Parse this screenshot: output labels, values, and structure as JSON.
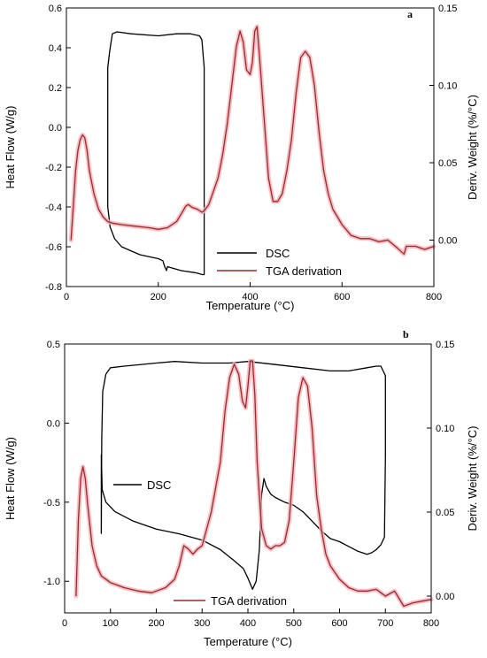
{
  "chart_data": [
    {
      "type": "line",
      "panel_label": "a",
      "xlabel": "Temperature (°C)",
      "ylabel": "Heat Flow (W/g)",
      "y2label": "Deriv. Weight (%/°C)",
      "xlim": [
        0,
        800
      ],
      "ylim": [
        -0.8,
        0.6
      ],
      "y2lim": [
        -0.03,
        0.15
      ],
      "xticks": [
        "0",
        "200",
        "400",
        "600",
        "800"
      ],
      "yticks": [
        "-0.8",
        "-0.6",
        "-0.4",
        "-0.2",
        "0.0",
        "0.2",
        "0.4",
        "0.6"
      ],
      "y2ticks": [
        "0.00",
        "0.05",
        "0.10",
        "0.15"
      ],
      "legend_position": "bottom-center",
      "legend": [
        "DSC",
        "TGA derivation"
      ],
      "colors": {
        "DSC": "#000000",
        "TGA derivation": "#9b2a2a",
        "halo": "#f3b0b8"
      },
      "series": [
        {
          "name": "DSC",
          "axis": "left",
          "x": [
            90,
            90,
            94,
            100,
            110,
            140,
            200,
            240,
            270,
            290,
            295,
            300,
            300,
            300,
            296,
            280,
            250,
            220,
            218,
            214,
            210,
            200,
            180,
            160,
            140,
            120,
            105,
            95,
            90,
            90,
            90
          ],
          "y": [
            -0.02,
            0.3,
            0.38,
            0.47,
            0.48,
            0.47,
            0.46,
            0.47,
            0.47,
            0.46,
            0.44,
            0.3,
            -0.2,
            -0.74,
            -0.74,
            -0.73,
            -0.72,
            -0.7,
            -0.72,
            -0.7,
            -0.67,
            -0.66,
            -0.65,
            -0.64,
            -0.62,
            -0.6,
            -0.56,
            -0.5,
            -0.4,
            -0.2,
            -0.02
          ]
        },
        {
          "name": "TGA derivation",
          "axis": "right",
          "x": [
            10,
            15,
            20,
            25,
            30,
            35,
            40,
            45,
            50,
            60,
            70,
            80,
            90,
            100,
            120,
            150,
            180,
            200,
            220,
            240,
            250,
            260,
            265,
            275,
            285,
            295,
            300,
            310,
            330,
            340,
            350,
            360,
            370,
            378,
            385,
            392,
            400,
            405,
            410,
            415,
            420,
            430,
            440,
            450,
            460,
            470,
            480,
            490,
            500,
            510,
            520,
            530,
            540,
            550,
            560,
            570,
            580,
            600,
            620,
            640,
            660,
            680,
            700,
            720,
            735,
            740,
            760,
            780,
            800
          ],
          "y": [
            0.0,
            0.022,
            0.045,
            0.058,
            0.065,
            0.068,
            0.066,
            0.058,
            0.045,
            0.03,
            0.02,
            0.015,
            0.012,
            0.011,
            0.01,
            0.009,
            0.008,
            0.007,
            0.008,
            0.012,
            0.017,
            0.022,
            0.023,
            0.021,
            0.02,
            0.018,
            0.019,
            0.023,
            0.04,
            0.055,
            0.075,
            0.1,
            0.125,
            0.135,
            0.128,
            0.11,
            0.107,
            0.115,
            0.135,
            0.138,
            0.12,
            0.08,
            0.04,
            0.025,
            0.025,
            0.03,
            0.045,
            0.065,
            0.095,
            0.118,
            0.122,
            0.118,
            0.1,
            0.07,
            0.045,
            0.03,
            0.02,
            0.01,
            0.003,
            0.001,
            0.001,
            -0.001,
            0.0,
            -0.005,
            -0.009,
            -0.004,
            -0.004,
            -0.006,
            -0.004
          ]
        }
      ]
    },
    {
      "type": "line",
      "panel_label": "b",
      "xlabel": "Temperature (°C)",
      "ylabel": "Heat Flow (W/g)",
      "y2label": "Deriv. Weight (%/°C)",
      "xlim": [
        0,
        800
      ],
      "ylim": [
        -1.2,
        0.5
      ],
      "y2lim": [
        -0.01,
        0.15
      ],
      "xticks": [
        "0",
        "100",
        "200",
        "300",
        "400",
        "500",
        "600",
        "700",
        "800"
      ],
      "yticks": [
        "-1.0",
        "-0.5",
        "0.0",
        "0.5"
      ],
      "y2ticks": [
        "0.00",
        "0.05",
        "0.10",
        "0.15"
      ],
      "legend": [
        "DSC",
        "TGA derivation"
      ],
      "colors": {
        "DSC": "#000000",
        "TGA derivation": "#9b2a2a",
        "halo": "#f3b0b8"
      },
      "series": [
        {
          "name": "DSC",
          "axis": "left",
          "x": [
            80,
            81,
            83,
            90,
            100,
            130,
            200,
            240,
            300,
            360,
            400,
            460,
            520,
            580,
            620,
            660,
            680,
            690,
            695,
            700,
            700,
            698,
            690,
            680,
            670,
            660,
            640,
            620,
            600,
            580,
            560,
            540,
            520,
            500,
            480,
            460,
            450,
            440,
            435,
            430,
            425,
            418,
            410,
            400,
            390,
            370,
            340,
            300,
            250,
            200,
            150,
            110,
            90,
            82,
            80,
            80
          ],
          "y": [
            -0.7,
            -0.1,
            0.2,
            0.31,
            0.35,
            0.36,
            0.38,
            0.39,
            0.38,
            0.38,
            0.39,
            0.37,
            0.35,
            0.33,
            0.33,
            0.35,
            0.36,
            0.36,
            0.33,
            0.3,
            -0.2,
            -0.72,
            -0.77,
            -0.8,
            -0.82,
            -0.83,
            -0.81,
            -0.78,
            -0.75,
            -0.73,
            -0.68,
            -0.62,
            -0.56,
            -0.52,
            -0.5,
            -0.47,
            -0.45,
            -0.4,
            -0.35,
            -0.45,
            -0.8,
            -1.0,
            -1.05,
            -0.98,
            -0.92,
            -0.87,
            -0.8,
            -0.74,
            -0.7,
            -0.67,
            -0.62,
            -0.56,
            -0.5,
            -0.42,
            -0.2,
            -0.7
          ]
        },
        {
          "name": "TGA derivation",
          "axis": "right",
          "x": [
            25,
            30,
            35,
            40,
            45,
            50,
            60,
            70,
            80,
            100,
            130,
            160,
            190,
            200,
            220,
            240,
            250,
            260,
            270,
            280,
            290,
            300,
            320,
            340,
            350,
            360,
            370,
            380,
            388,
            395,
            400,
            405,
            410,
            415,
            420,
            430,
            440,
            450,
            460,
            470,
            480,
            490,
            500,
            510,
            520,
            530,
            540,
            550,
            560,
            570,
            580,
            600,
            620,
            640,
            660,
            680,
            690,
            700,
            720,
            740,
            760,
            780,
            800
          ],
          "y": [
            0.0,
            0.045,
            0.07,
            0.077,
            0.07,
            0.055,
            0.03,
            0.018,
            0.012,
            0.008,
            0.005,
            0.003,
            0.002,
            0.003,
            0.005,
            0.01,
            0.018,
            0.03,
            0.028,
            0.025,
            0.028,
            0.03,
            0.05,
            0.08,
            0.11,
            0.13,
            0.138,
            0.132,
            0.116,
            0.112,
            0.125,
            0.14,
            0.14,
            0.12,
            0.08,
            0.04,
            0.03,
            0.028,
            0.03,
            0.03,
            0.032,
            0.045,
            0.08,
            0.118,
            0.13,
            0.125,
            0.1,
            0.06,
            0.04,
            0.025,
            0.018,
            0.01,
            0.005,
            0.003,
            0.003,
            0.004,
            0.002,
            0.0,
            0.003,
            -0.006,
            -0.004,
            -0.003,
            -0.002
          ]
        }
      ]
    }
  ]
}
